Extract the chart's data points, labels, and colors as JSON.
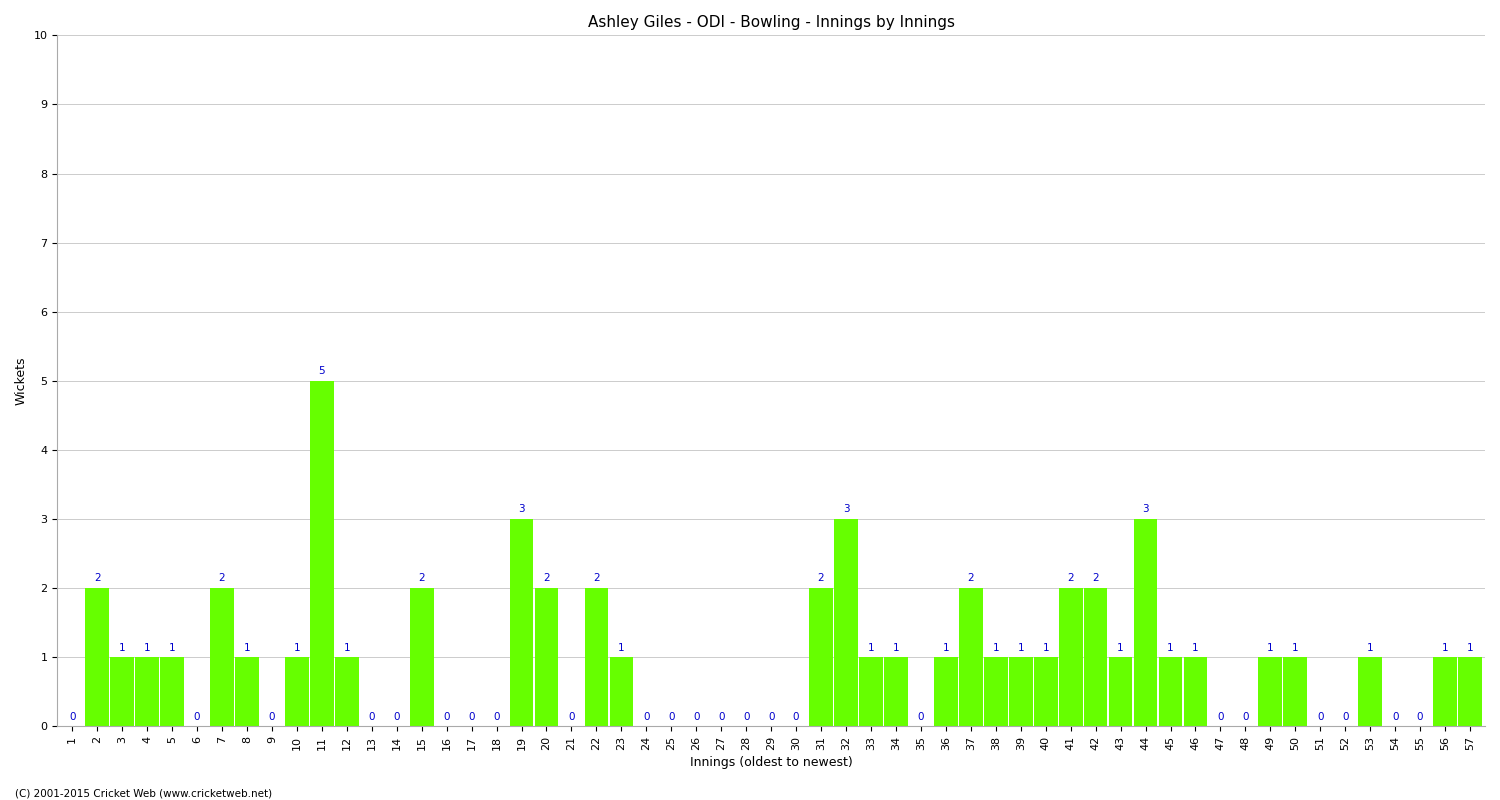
{
  "title": "Ashley Giles - ODI - Bowling - Innings by Innings",
  "xlabel": "Innings (oldest to newest)",
  "ylabel": "Wickets",
  "copyright": "(C) 2001-2015 Cricket Web (www.cricketweb.net)",
  "ylim": [
    0,
    10
  ],
  "bar_color": "#66ff00",
  "label_color": "#0000cc",
  "innings": [
    1,
    2,
    3,
    4,
    5,
    6,
    7,
    8,
    9,
    10,
    11,
    12,
    13,
    14,
    15,
    16,
    17,
    18,
    19,
    20,
    21,
    22,
    23,
    24,
    25,
    26,
    27,
    28,
    29,
    30,
    31,
    32,
    33,
    34,
    35,
    36,
    37,
    38,
    39,
    40,
    41,
    42,
    43,
    44,
    45,
    46,
    47,
    48,
    49,
    50,
    51,
    52,
    53,
    54,
    55,
    56,
    57
  ],
  "wickets": [
    0,
    2,
    1,
    1,
    1,
    0,
    2,
    1,
    0,
    1,
    5,
    1,
    0,
    0,
    2,
    0,
    0,
    0,
    3,
    2,
    0,
    2,
    1,
    0,
    0,
    0,
    0,
    0,
    0,
    0,
    2,
    3,
    1,
    1,
    0,
    1,
    2,
    1,
    1,
    1,
    2,
    2,
    1,
    3,
    1,
    1,
    0,
    0,
    1,
    1,
    0,
    0,
    1,
    0,
    0,
    1,
    1
  ],
  "background_color": "#ffffff",
  "grid_color": "#cccccc",
  "title_fontsize": 11,
  "axis_label_fontsize": 9,
  "tick_fontsize": 8,
  "value_label_fontsize": 7.5
}
